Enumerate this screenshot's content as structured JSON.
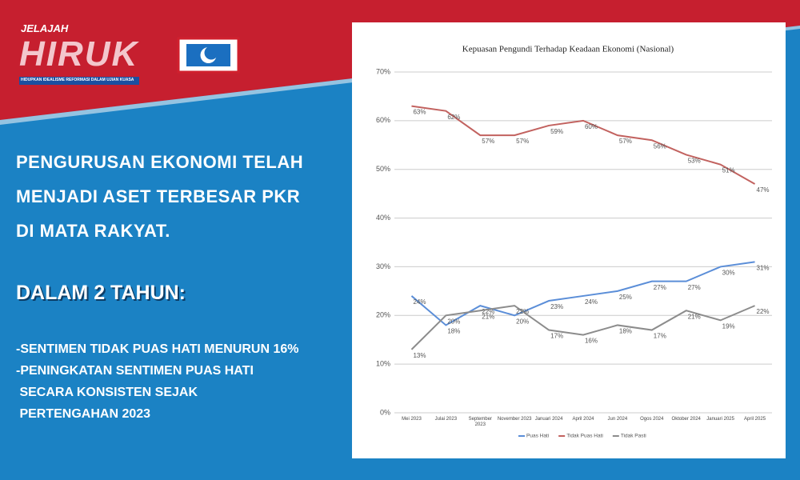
{
  "header": {
    "brand_top": "JELAJAH",
    "brand": "HIRUK",
    "tagline": "HIDUPKAN IDEALISME REFORMASI DALAM UJIAN KUASA"
  },
  "statement": [
    "PENGURUSAN EKONOMI TELAH",
    "MENJADI ASET TERBESAR PKR",
    "DI MATA RAKYAT."
  ],
  "subheading": "DALAM 2 TAHUN:",
  "points": [
    "-SENTIMEN TIDAK PUAS HATI MENURUN 16%",
    "-PENINGKATAN SENTIMEN PUAS HATI",
    " SECARA KONSISTEN SEJAK",
    " PERTENGAHAN 2023"
  ],
  "chart_data": {
    "type": "line",
    "title": "Kepuasan Pengundi Terhadap Keadaan Ekonomi (Nasional)",
    "categories": [
      "Mei 2023",
      "Julai 2023",
      "September 2023",
      "November 2023",
      "Januari 2024",
      "April 2024",
      "Jun 2024",
      "Ogos 2024",
      "Oktober 2024",
      "Januari 2025",
      "April 2025"
    ],
    "series": [
      {
        "name": "Puas Hati",
        "color": "#5b8ed8",
        "values": [
          24,
          18,
          22,
          20,
          23,
          24,
          25,
          27,
          27,
          30,
          31
        ],
        "value_labels": [
          "24%",
          "18%",
          "22%",
          "20%",
          "23%",
          "24%",
          "25%",
          "27%",
          "27%",
          "30%",
          "31%"
        ]
      },
      {
        "name": "Tidak Puas Hati",
        "color": "#c2625f",
        "values": [
          63,
          62,
          57,
          57,
          59,
          60,
          57,
          56,
          53,
          51,
          47
        ],
        "value_labels": [
          "63%",
          "62%",
          "57%",
          "57%",
          "59%",
          "60%",
          "57%",
          "56%",
          "53%",
          "51%",
          "47%"
        ]
      },
      {
        "name": "Tidak Pasti",
        "color": "#8c8c8c",
        "values": [
          13,
          20,
          21,
          22,
          17,
          16,
          18,
          17,
          21,
          19,
          22
        ],
        "value_labels": [
          "13%",
          "20%",
          "21%",
          "22%",
          "17%",
          "16%",
          "18%",
          "17%",
          "21%",
          "19%",
          "22%"
        ]
      }
    ],
    "ylim": [
      0,
      70
    ],
    "yticks": [
      {
        "value": 0,
        "label": "0%"
      },
      {
        "value": 10,
        "label": "10%"
      },
      {
        "value": 20,
        "label": "20%"
      },
      {
        "value": 30,
        "label": "30%"
      },
      {
        "value": 40,
        "label": "40%"
      },
      {
        "value": 50,
        "label": "50%"
      },
      {
        "value": 60,
        "label": "60%"
      },
      {
        "value": 70,
        "label": "70%"
      }
    ],
    "grid": true,
    "legend": "bottom"
  }
}
